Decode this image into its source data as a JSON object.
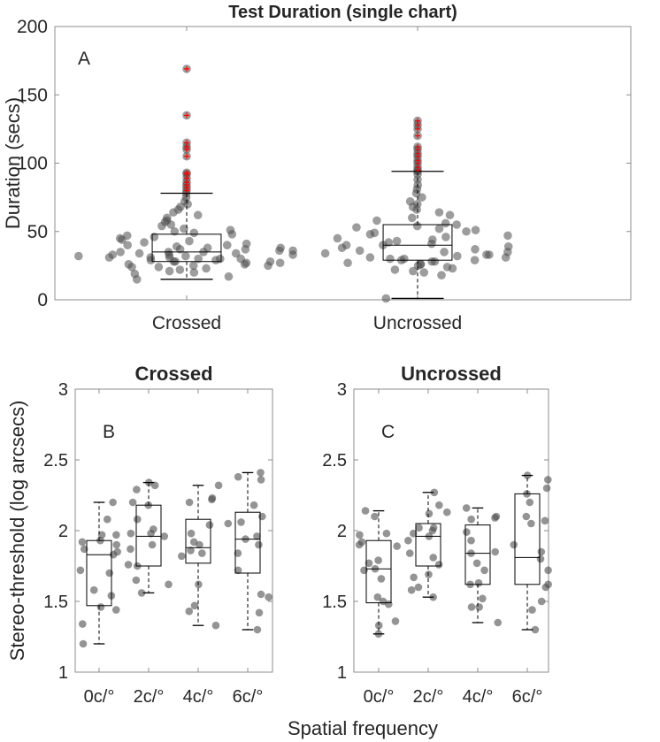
{
  "chart_data": [
    {
      "id": "A",
      "type": "boxplot-swarm",
      "title": "Test Duration (single chart)",
      "panel_label": "A",
      "ylabel": "Duration (secs)",
      "xlabel": "",
      "ylim": [
        0,
        200
      ],
      "yticks": [
        0,
        50,
        100,
        150,
        200
      ],
      "categories": [
        "Crossed",
        "Uncrossed"
      ],
      "boxes": [
        {
          "min": 15,
          "q1": 28,
          "median": 35,
          "q3": 48,
          "max": 78,
          "outliers": [
            80,
            82,
            84,
            86,
            89,
            92,
            93,
            105,
            110,
            112,
            115,
            135,
            169
          ]
        },
        {
          "min": 1,
          "q1": 29,
          "median": 40,
          "q3": 55,
          "max": 94,
          "outliers": [
            95,
            97,
            100,
            102,
            105,
            107,
            110,
            112,
            120,
            125,
            128,
            131
          ]
        }
      ],
      "points": [
        [
          15,
          17,
          19,
          20,
          21,
          22,
          23,
          24,
          24,
          25,
          25,
          26,
          26,
          27,
          27,
          28,
          28,
          28,
          29,
          29,
          30,
          30,
          30,
          31,
          31,
          31,
          32,
          32,
          33,
          33,
          33,
          34,
          34,
          35,
          35,
          35,
          36,
          36,
          37,
          37,
          38,
          38,
          39,
          40,
          40,
          41,
          42,
          43,
          44,
          45,
          46,
          47,
          48,
          49,
          50,
          51,
          52,
          54,
          55,
          57,
          58,
          60,
          62,
          64,
          66,
          68,
          70,
          72,
          75,
          78,
          80,
          82,
          84,
          86,
          89,
          92,
          93,
          105,
          110,
          112,
          115,
          135,
          169
        ],
        [
          1,
          18,
          20,
          21,
          22,
          23,
          24,
          25,
          26,
          26,
          27,
          28,
          28,
          29,
          29,
          30,
          30,
          31,
          31,
          32,
          33,
          33,
          34,
          35,
          35,
          36,
          37,
          38,
          39,
          40,
          40,
          41,
          42,
          43,
          44,
          45,
          46,
          47,
          48,
          49,
          50,
          51,
          52,
          53,
          54,
          55,
          56,
          58,
          60,
          62,
          64,
          66,
          68,
          70,
          72,
          75,
          78,
          81,
          84,
          88,
          92,
          94,
          95,
          97,
          100,
          102,
          105,
          107,
          110,
          112,
          120,
          125,
          128,
          131
        ]
      ]
    },
    {
      "id": "B",
      "type": "boxplot-jitter",
      "title": "Crossed",
      "panel_label": "B",
      "ylabel": "Stereo-threshold (log arcsecs)",
      "ylim": [
        1,
        3
      ],
      "yticks": [
        1,
        1.5,
        2,
        2.5,
        3
      ],
      "categories": [
        "0c/°",
        "2c/°",
        "4c/°",
        "6c/°"
      ],
      "boxes": [
        {
          "min": 1.2,
          "q1": 1.47,
          "median": 1.83,
          "q3": 1.93,
          "max": 2.2
        },
        {
          "min": 1.56,
          "q1": 1.75,
          "median": 1.96,
          "q3": 2.18,
          "max": 2.34
        },
        {
          "min": 1.33,
          "q1": 1.77,
          "median": 1.88,
          "q3": 2.08,
          "max": 2.32
        },
        {
          "min": 1.3,
          "q1": 1.7,
          "median": 1.94,
          "q3": 2.13,
          "max": 2.41
        }
      ],
      "points": [
        [
          1.2,
          1.34,
          1.44,
          1.46,
          1.54,
          1.58,
          1.7,
          1.72,
          1.83,
          1.85,
          1.87,
          1.9,
          1.92,
          1.93,
          1.97,
          1.97,
          2.08,
          2.2
        ],
        [
          1.56,
          1.62,
          1.65,
          1.75,
          1.76,
          1.87,
          1.9,
          1.96,
          1.98,
          1.98,
          2.01,
          2.08,
          2.18,
          2.2,
          2.29,
          2.32,
          2.34
        ],
        [
          1.33,
          1.43,
          1.47,
          1.62,
          1.82,
          1.84,
          1.86,
          1.9,
          1.92,
          1.98,
          2.04,
          2.2,
          2.22,
          2.23,
          2.32
        ],
        [
          1.3,
          1.42,
          1.53,
          1.55,
          1.72,
          1.84,
          1.9,
          1.94,
          1.96,
          2.05,
          2.06,
          2.1,
          2.18,
          2.36,
          2.38,
          2.41
        ]
      ]
    },
    {
      "id": "C",
      "type": "boxplot-jitter",
      "title": "Uncrossed",
      "panel_label": "C",
      "ylabel": "",
      "ylim": [
        1,
        3
      ],
      "yticks": [
        1,
        1.5,
        2,
        2.5,
        3
      ],
      "categories": [
        "0c/°",
        "2c/°",
        "4c/°",
        "6c/°"
      ],
      "boxes": [
        {
          "min": 1.27,
          "q1": 1.49,
          "median": 1.73,
          "q3": 1.93,
          "max": 2.14
        },
        {
          "min": 1.53,
          "q1": 1.75,
          "median": 1.96,
          "q3": 2.05,
          "max": 2.27
        },
        {
          "min": 1.35,
          "q1": 1.62,
          "median": 1.84,
          "q3": 2.04,
          "max": 2.16
        },
        {
          "min": 1.3,
          "q1": 1.62,
          "median": 1.81,
          "q3": 2.26,
          "max": 2.39
        }
      ],
      "points": [
        [
          1.27,
          1.33,
          1.36,
          1.48,
          1.5,
          1.53,
          1.66,
          1.72,
          1.73,
          1.77,
          1.79,
          1.89,
          1.9,
          1.92,
          1.97,
          1.98,
          2.1,
          2.14
        ],
        [
          1.53,
          1.58,
          1.6,
          1.67,
          1.69,
          1.76,
          1.81,
          1.84,
          1.93,
          1.96,
          1.98,
          2.0,
          2.02,
          2.02,
          2.12,
          2.13,
          2.18,
          2.27
        ],
        [
          1.35,
          1.46,
          1.46,
          1.52,
          1.62,
          1.63,
          1.72,
          1.77,
          1.84,
          1.85,
          1.93,
          1.99,
          2.08,
          2.09,
          2.1,
          2.16
        ],
        [
          1.3,
          1.44,
          1.5,
          1.6,
          1.62,
          1.72,
          1.8,
          1.85,
          1.9,
          2.05,
          2.07,
          2.1,
          2.2,
          2.26,
          2.3,
          2.36,
          2.39
        ]
      ]
    }
  ],
  "shared_xlabel": "Spatial frequency",
  "colors": {
    "point": "#4d4d4d",
    "outlier": "#ff0000",
    "axis": "#8c8c8c",
    "text": "#262626"
  }
}
